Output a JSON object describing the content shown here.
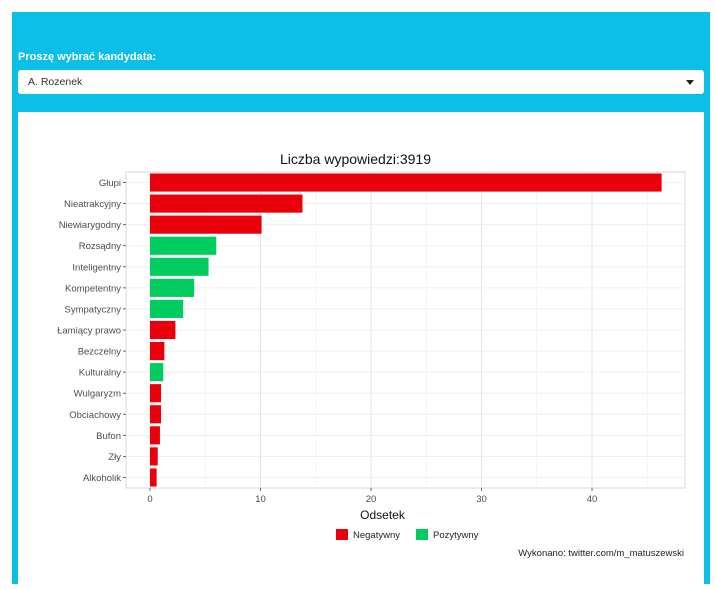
{
  "form": {
    "label": "Proszę wybrać kandydata:",
    "selected_value": "A. Rozenek"
  },
  "chart_data": {
    "type": "bar",
    "orientation": "horizontal",
    "title": "Liczba wypowiedzi:3919",
    "xlabel": "Odsetek",
    "ylabel": "",
    "xlim": [
      0,
      47.5
    ],
    "xticks": [
      0,
      10,
      20,
      30,
      40
    ],
    "grid": true,
    "legend_position": "bottom",
    "colors": {
      "Negatywny": "#e8000b",
      "Pozytywny": "#00cc5f"
    },
    "categories": [
      "Głupi",
      "Nieatrakcyjny",
      "Niewiarygodny",
      "Rozsądny",
      "Inteligentny",
      "Kompetentny",
      "Sympatyczny",
      "Łamiący prawo",
      "Bezczelny",
      "Kulturalny",
      "Wulgaryzm",
      "Obciachowy",
      "Bufon",
      "Zły",
      "Alkoholik"
    ],
    "values": [
      46.3,
      13.8,
      10.1,
      6.0,
      5.3,
      4.0,
      3.0,
      2.3,
      1.3,
      1.2,
      1.0,
      1.0,
      0.9,
      0.7,
      0.6
    ],
    "sentiment": [
      "Negatywny",
      "Negatywny",
      "Negatywny",
      "Pozytywny",
      "Pozytywny",
      "Pozytywny",
      "Pozytywny",
      "Negatywny",
      "Negatywny",
      "Pozytywny",
      "Negatywny",
      "Negatywny",
      "Negatywny",
      "Negatywny",
      "Negatywny"
    ],
    "legend": [
      {
        "name": "Negatywny"
      },
      {
        "name": "Pozytywny"
      }
    ],
    "credit": "Wykonano: twitter.com/m_matuszewski"
  }
}
